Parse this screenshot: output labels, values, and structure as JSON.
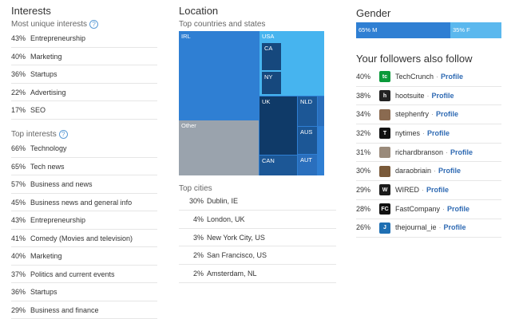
{
  "interests": {
    "title": "Interests",
    "most_unique_label": "Most unique interests",
    "most_unique": [
      {
        "pct": "43%",
        "label": "Entrepreneurship"
      },
      {
        "pct": "40%",
        "label": "Marketing"
      },
      {
        "pct": "36%",
        "label": "Startups"
      },
      {
        "pct": "22%",
        "label": "Advertising"
      },
      {
        "pct": "17%",
        "label": "SEO"
      }
    ],
    "top_label": "Top interests",
    "top": [
      {
        "pct": "66%",
        "label": "Technology"
      },
      {
        "pct": "65%",
        "label": "Tech news"
      },
      {
        "pct": "57%",
        "label": "Business and news"
      },
      {
        "pct": "45%",
        "label": "Business news and general info"
      },
      {
        "pct": "43%",
        "label": "Entrepreneurship"
      },
      {
        "pct": "41%",
        "label": "Comedy (Movies and television)"
      },
      {
        "pct": "40%",
        "label": "Marketing"
      },
      {
        "pct": "37%",
        "label": "Politics and current events"
      },
      {
        "pct": "36%",
        "label": "Startups"
      },
      {
        "pct": "29%",
        "label": "Business and finance"
      }
    ]
  },
  "location": {
    "title": "Location",
    "subtitle": "Top countries and states",
    "treemap": {
      "irl": "IRL",
      "usa": "USA",
      "ca": "CA",
      "ny": "NY",
      "uk": "UK",
      "nld": "NLD",
      "aus": "AUS",
      "aut": "AUT",
      "can": "CAN",
      "other": "Other"
    },
    "cities_label": "Top cities",
    "cities": [
      {
        "pct": "30%",
        "label": "Dublin, IE"
      },
      {
        "pct": "4%",
        "label": "London, UK"
      },
      {
        "pct": "3%",
        "label": "New York City, US"
      },
      {
        "pct": "2%",
        "label": "San Francisco, US"
      },
      {
        "pct": "2%",
        "label": "Amsterdam, NL"
      }
    ]
  },
  "gender": {
    "title": "Gender",
    "male_label": "65% M",
    "female_label": "35% F",
    "male_share": 0.65,
    "male_color": "#2f7fd3",
    "female_color": "#5bb8ee"
  },
  "followers": {
    "title": "Your followers also follow",
    "profile_label": "Profile",
    "items": [
      {
        "pct": "40%",
        "name": "TechCrunch",
        "icon": "techcrunch-icon",
        "color": "#0a9a3a",
        "glyph": "tc"
      },
      {
        "pct": "38%",
        "name": "hootsuite",
        "icon": "hootsuite-icon",
        "color": "#222222",
        "glyph": "h"
      },
      {
        "pct": "34%",
        "name": "stephenfry",
        "icon": "stephenfry-avatar",
        "color": "#8a6a50",
        "glyph": ""
      },
      {
        "pct": "32%",
        "name": "nytimes",
        "icon": "nytimes-icon",
        "color": "#111111",
        "glyph": "T"
      },
      {
        "pct": "31%",
        "name": "richardbranson",
        "icon": "richardbranson-avatar",
        "color": "#9a8a7a",
        "glyph": ""
      },
      {
        "pct": "30%",
        "name": "daraobriain",
        "icon": "daraobriain-avatar",
        "color": "#7a5a3a",
        "glyph": ""
      },
      {
        "pct": "29%",
        "name": "WIRED",
        "icon": "wired-icon",
        "color": "#1a1a1a",
        "glyph": "W"
      },
      {
        "pct": "28%",
        "name": "FastCompany",
        "icon": "fastcompany-icon",
        "color": "#111111",
        "glyph": "FC"
      },
      {
        "pct": "26%",
        "name": "thejournal_ie",
        "icon": "thejournal-icon",
        "color": "#1f6fb3",
        "glyph": "J"
      }
    ]
  }
}
